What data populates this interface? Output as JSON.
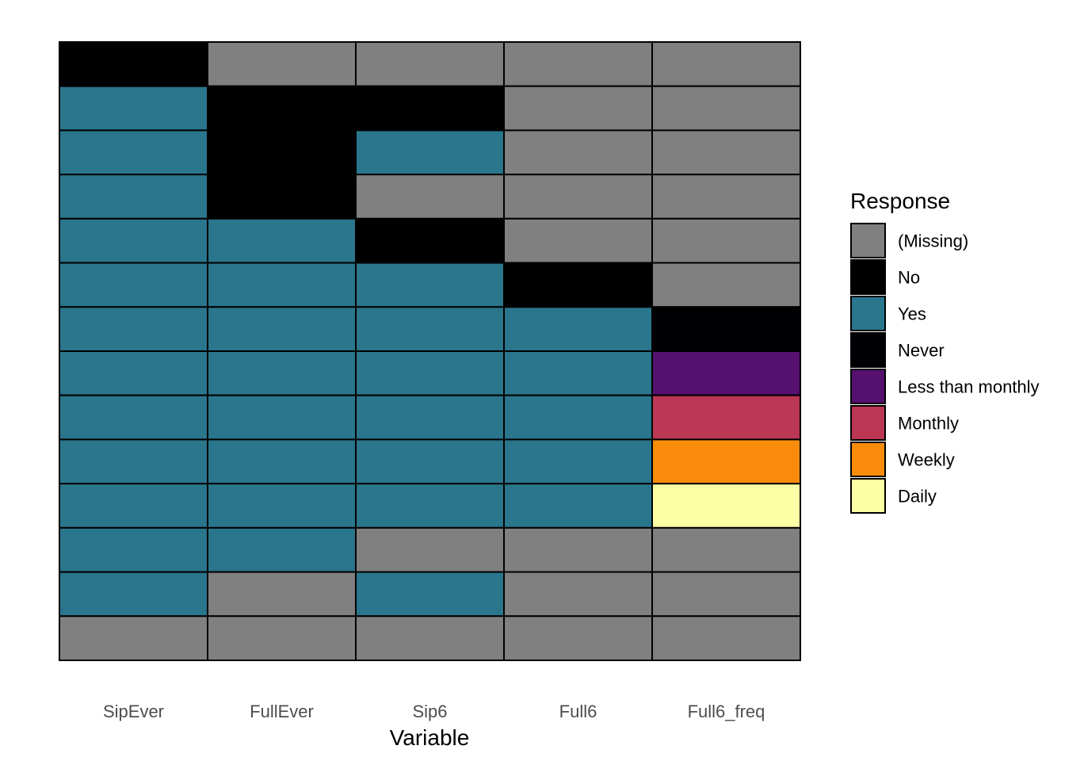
{
  "chart_data": {
    "type": "heatmap",
    "xlabel": "Variable",
    "ylabel": "",
    "x": [
      "SipEver",
      "FullEver",
      "Sip6",
      "Full6",
      "Full6_freq"
    ],
    "legend": {
      "title": "Response",
      "placement": "right",
      "entries": [
        {
          "label": "(Missing)",
          "color": "#808080"
        },
        {
          "label": "No",
          "color": "#000000"
        },
        {
          "label": "Yes",
          "color": "#2A768C"
        },
        {
          "label": "Never",
          "color": "#000004"
        },
        {
          "label": "Less than monthly",
          "color": "#56106E"
        },
        {
          "label": "Monthly",
          "color": "#BB3754"
        },
        {
          "label": "Weekly",
          "color": "#F98C0A"
        },
        {
          "label": "Daily",
          "color": "#FCFFA4"
        }
      ]
    },
    "rows": [
      [
        "No",
        "(Missing)",
        "(Missing)",
        "(Missing)",
        "(Missing)"
      ],
      [
        "Yes",
        "No",
        "No",
        "(Missing)",
        "(Missing)"
      ],
      [
        "Yes",
        "No",
        "Yes",
        "(Missing)",
        "(Missing)"
      ],
      [
        "Yes",
        "No",
        "(Missing)",
        "(Missing)",
        "(Missing)"
      ],
      [
        "Yes",
        "Yes",
        "No",
        "(Missing)",
        "(Missing)"
      ],
      [
        "Yes",
        "Yes",
        "Yes",
        "No",
        "(Missing)"
      ],
      [
        "Yes",
        "Yes",
        "Yes",
        "Yes",
        "Never"
      ],
      [
        "Yes",
        "Yes",
        "Yes",
        "Yes",
        "Less than monthly"
      ],
      [
        "Yes",
        "Yes",
        "Yes",
        "Yes",
        "Monthly"
      ],
      [
        "Yes",
        "Yes",
        "Yes",
        "Yes",
        "Weekly"
      ],
      [
        "Yes",
        "Yes",
        "Yes",
        "Yes",
        "Daily"
      ],
      [
        "Yes",
        "Yes",
        "(Missing)",
        "(Missing)",
        "(Missing)"
      ],
      [
        "Yes",
        "(Missing)",
        "Yes",
        "(Missing)",
        "(Missing)"
      ],
      [
        "(Missing)",
        "(Missing)",
        "(Missing)",
        "(Missing)",
        "(Missing)"
      ]
    ],
    "grid": false
  }
}
